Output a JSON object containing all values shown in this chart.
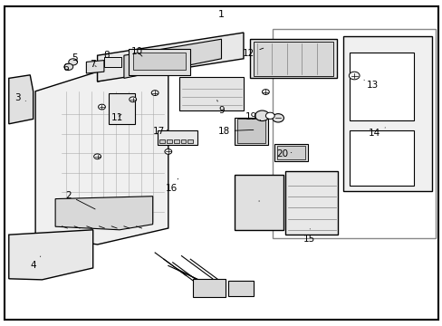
{
  "bg_color": "#ffffff",
  "fig_width": 4.89,
  "fig_height": 3.6,
  "dpi": 100,
  "label_positions": {
    "1": [
      0.5,
      0.955,
      0.5,
      0.946
    ],
    "2": [
      0.155,
      0.4,
      0.22,
      0.355
    ],
    "3": [
      0.04,
      0.7,
      0.058,
      0.69
    ],
    "4": [
      0.075,
      0.185,
      0.095,
      0.22
    ],
    "5": [
      0.168,
      0.822,
      0.178,
      0.805
    ],
    "6": [
      0.148,
      0.793,
      0.158,
      0.778
    ],
    "7": [
      0.21,
      0.802,
      0.222,
      0.792
    ],
    "8": [
      0.24,
      0.83,
      0.248,
      0.818
    ],
    "9": [
      0.5,
      0.66,
      0.488,
      0.7
    ],
    "10": [
      0.31,
      0.842,
      0.325,
      0.822
    ],
    "11": [
      0.265,
      0.638,
      0.278,
      0.655
    ],
    "12": [
      0.562,
      0.836,
      0.6,
      0.855
    ],
    "13": [
      0.842,
      0.738,
      0.822,
      0.755
    ],
    "14": [
      0.845,
      0.592,
      0.875,
      0.612
    ],
    "15": [
      0.698,
      0.268,
      0.7,
      0.298
    ],
    "16": [
      0.388,
      0.422,
      0.402,
      0.452
    ],
    "17": [
      0.358,
      0.598,
      0.378,
      0.602
    ],
    "18": [
      0.505,
      0.598,
      0.578,
      0.602
    ],
    "19": [
      0.568,
      0.643,
      0.588,
      0.632
    ],
    "20": [
      0.638,
      0.528,
      0.658,
      0.532
    ]
  }
}
